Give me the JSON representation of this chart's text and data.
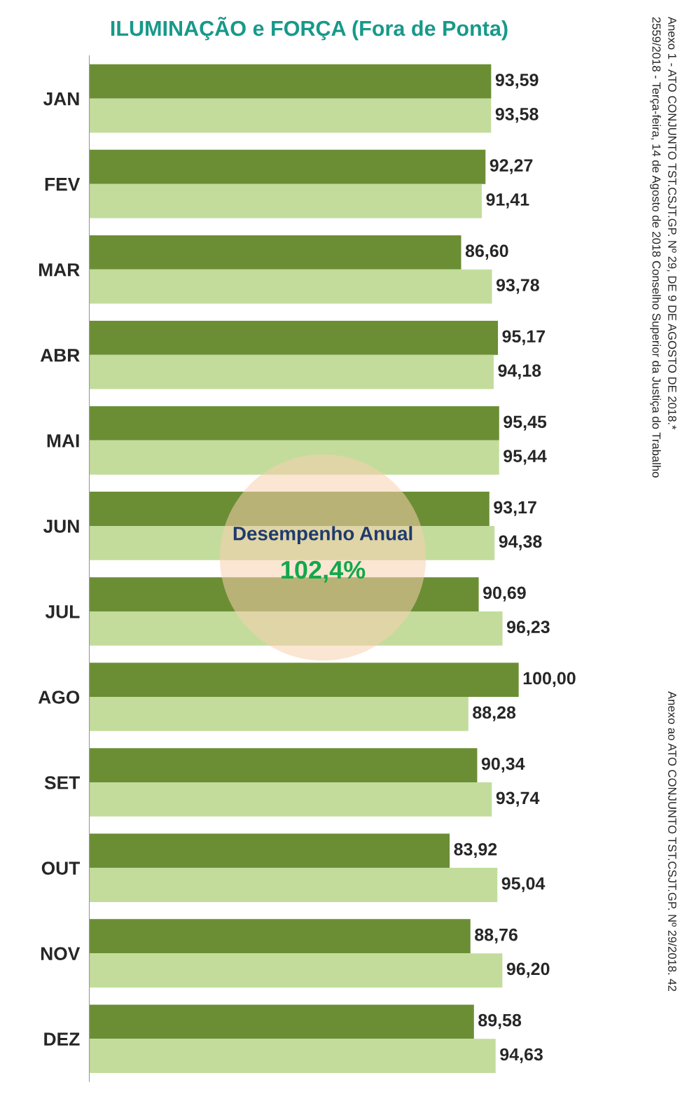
{
  "chart_data": {
    "type": "bar",
    "orientation": "horizontal",
    "title": "ILUMINAÇÃO e FORÇA (Fora de Ponta)",
    "categories": [
      "JAN",
      "FEV",
      "MAR",
      "ABR",
      "MAI",
      "JUN",
      "JUL",
      "AGO",
      "SET",
      "OUT",
      "NOV",
      "DEZ"
    ],
    "series": [
      {
        "color": "#6b8e34",
        "values": [
          93.59,
          92.27,
          86.6,
          95.17,
          95.45,
          93.17,
          90.69,
          100.0,
          90.34,
          83.92,
          88.76,
          89.58
        ],
        "value_labels": [
          "93,59",
          "92,27",
          "86,60",
          "95,17",
          "95,45",
          "93,17",
          "90,69",
          "100,00",
          "90,34",
          "83,92",
          "88,76",
          "89,58"
        ]
      },
      {
        "color": "#c3dc9c",
        "values": [
          93.58,
          91.41,
          93.78,
          94.18,
          95.44,
          94.38,
          96.23,
          88.28,
          93.74,
          95.04,
          96.2,
          94.63
        ],
        "value_labels": [
          "93,58",
          "91,41",
          "93,78",
          "94,18",
          "95,44",
          "94,38",
          "96,23",
          "88,28",
          "93,74",
          "95,04",
          "96,20",
          "94,63"
        ]
      }
    ],
    "annotations": [
      "Desempenho Anual",
      "102,4%",
      "Anexo 1 - ATO CONJUNTO TST.CSJT.GP. Nº 29, DE 9 DE AGOSTO DE 2018.*",
      "2559/2018 - Terça-feira, 14 de Agosto de 2018 Conselho Superior da Justiça do Trabalho",
      "Anexo ao ATO CONJUNTO TST.CSJT.GP. Nº 29/2018. 42"
    ],
    "grid": false,
    "legend": false
  }
}
